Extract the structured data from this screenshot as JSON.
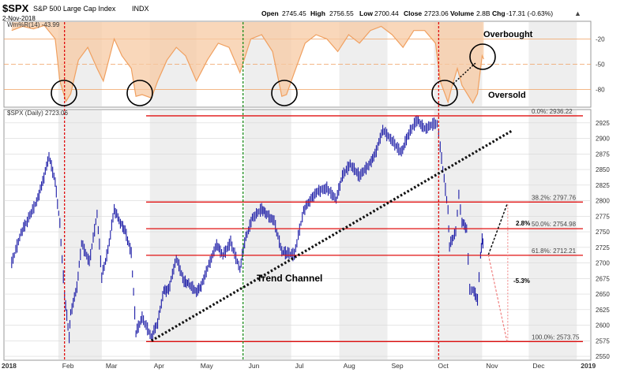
{
  "header": {
    "symbol": "$SPX",
    "name": "S&P 500 Large Cap Index",
    "exchange": "INDX",
    "date": "2-Nov-2018",
    "open_label": "Open",
    "open": "2745.45",
    "high_label": "High",
    "high": "2756.55",
    "low_label": "Low",
    "low": "2700.44",
    "close_label": "Close",
    "close": "2723.06",
    "volume_label": "Volume",
    "volume": "2.8B",
    "chg_label": "Chg",
    "chg": "-17.31 (-0.63%)"
  },
  "colors": {
    "price": "#1a1aa6",
    "willr": "#f0a060",
    "willr_fill": "#f7c9a3",
    "fib": "#e01010",
    "trend": "#111111",
    "grid": "#d8d8d8",
    "band": "#eeeeee",
    "vline_red": "#e01010",
    "vline_green": "#1a8a1a"
  },
  "chart_data": [
    {
      "type": "line",
      "title": "",
      "series": [
        {
          "name": "Wm%R(14)",
          "last_label": "-43.99",
          "x": [
            "2018-01-02",
            "2018-01-09",
            "2018-01-16",
            "2018-01-23",
            "2018-01-30",
            "2018-02-02",
            "2018-02-06",
            "2018-02-09",
            "2018-02-14",
            "2018-02-20",
            "2018-02-26",
            "2018-03-02",
            "2018-03-09",
            "2018-03-14",
            "2018-03-20",
            "2018-03-23",
            "2018-03-27",
            "2018-04-02",
            "2018-04-06",
            "2018-04-12",
            "2018-04-18",
            "2018-04-24",
            "2018-05-01",
            "2018-05-08",
            "2018-05-15",
            "2018-05-22",
            "2018-05-29",
            "2018-06-05",
            "2018-06-12",
            "2018-06-19",
            "2018-06-25",
            "2018-06-28",
            "2018-07-03",
            "2018-07-10",
            "2018-07-17",
            "2018-07-24",
            "2018-07-31",
            "2018-08-07",
            "2018-08-14",
            "2018-08-21",
            "2018-08-28",
            "2018-09-04",
            "2018-09-11",
            "2018-09-18",
            "2018-09-25",
            "2018-10-02",
            "2018-10-05",
            "2018-10-10",
            "2018-10-12",
            "2018-10-16",
            "2018-10-19",
            "2018-10-24",
            "2018-10-26",
            "2018-10-29",
            "2018-11-01",
            "2018-11-02"
          ],
          "values": [
            -10,
            -5,
            -8,
            -4,
            -20,
            -70,
            -94,
            -85,
            -45,
            -30,
            -55,
            -70,
            -20,
            -40,
            -55,
            -88,
            -86,
            -90,
            -70,
            -45,
            -30,
            -40,
            -70,
            -45,
            -25,
            -30,
            -60,
            -20,
            -15,
            -35,
            -88,
            -86,
            -60,
            -25,
            -15,
            -20,
            -35,
            -15,
            -25,
            -10,
            -5,
            -15,
            -30,
            -10,
            -10,
            -25,
            -70,
            -95,
            -80,
            -55,
            -75,
            -90,
            -96,
            -85,
            -40,
            -44
          ]
        }
      ],
      "ylim": [
        -100,
        0
      ],
      "yticks": [
        -20,
        -50,
        -80
      ],
      "hlines": [
        -20,
        -50,
        -80
      ],
      "annotations": [
        "Overbought",
        "Oversold"
      ]
    },
    {
      "type": "line",
      "title": "",
      "legend_label": "$SPX (Daily) 2723.06",
      "series": [
        {
          "name": "$SPX",
          "x": [
            "2018-01-02",
            "2018-01-08",
            "2018-01-12",
            "2018-01-18",
            "2018-01-22",
            "2018-01-26",
            "2018-01-30",
            "2018-02-02",
            "2018-02-05",
            "2018-02-08",
            "2018-02-09",
            "2018-02-13",
            "2018-02-16",
            "2018-02-21",
            "2018-02-26",
            "2018-03-01",
            "2018-03-05",
            "2018-03-09",
            "2018-03-13",
            "2018-03-16",
            "2018-03-20",
            "2018-03-23",
            "2018-03-27",
            "2018-04-02",
            "2018-04-06",
            "2018-04-10",
            "2018-04-13",
            "2018-04-18",
            "2018-04-23",
            "2018-04-26",
            "2018-05-01",
            "2018-05-04",
            "2018-05-09",
            "2018-05-14",
            "2018-05-18",
            "2018-05-23",
            "2018-05-29",
            "2018-06-01",
            "2018-06-06",
            "2018-06-12",
            "2018-06-15",
            "2018-06-20",
            "2018-06-25",
            "2018-06-28",
            "2018-07-03",
            "2018-07-09",
            "2018-07-13",
            "2018-07-18",
            "2018-07-24",
            "2018-07-30",
            "2018-08-03",
            "2018-08-08",
            "2018-08-14",
            "2018-08-20",
            "2018-08-24",
            "2018-08-29",
            "2018-09-04",
            "2018-09-10",
            "2018-09-14",
            "2018-09-20",
            "2018-09-25",
            "2018-10-01",
            "2018-10-03",
            "2018-10-05",
            "2018-10-10",
            "2018-10-11",
            "2018-10-15",
            "2018-10-17",
            "2018-10-19",
            "2018-10-22",
            "2018-10-24",
            "2018-10-26",
            "2018-10-29",
            "2018-10-31",
            "2018-11-01",
            "2018-11-02"
          ],
          "values": [
            2700,
            2748,
            2768,
            2798,
            2830,
            2872,
            2830,
            2762,
            2649,
            2581,
            2619,
            2662,
            2732,
            2701,
            2779,
            2678,
            2720,
            2786,
            2765,
            2752,
            2716,
            2588,
            2612,
            2581,
            2605,
            2656,
            2656,
            2708,
            2670,
            2666,
            2654,
            2663,
            2697,
            2730,
            2712,
            2733,
            2690,
            2734,
            2772,
            2787,
            2779,
            2767,
            2718,
            2716,
            2713,
            2784,
            2801,
            2815,
            2820,
            2802,
            2840,
            2858,
            2840,
            2857,
            2874,
            2914,
            2896,
            2877,
            2904,
            2930,
            2915,
            2924,
            2925,
            2885,
            2785,
            2728,
            2750,
            2809,
            2767,
            2755,
            2656,
            2658,
            2641,
            2711,
            2740,
            2723
          ]
        }
      ],
      "ylim": [
        2545,
        2945
      ],
      "yticks": [
        2550,
        2575,
        2600,
        2625,
        2650,
        2675,
        2700,
        2725,
        2750,
        2775,
        2800,
        2825,
        2850,
        2875,
        2900,
        2925
      ],
      "xticks": [
        "2018",
        "Feb",
        "Mar",
        "Apr",
        "May",
        "Jun",
        "Jul",
        "Aug",
        "Sep",
        "Oct",
        "Nov",
        "Dec",
        "2019"
      ],
      "fib_levels": [
        {
          "label": "0.0%: 2936.22",
          "value": 2936.22
        },
        {
          "label": "38.2%: 2797.76",
          "value": 2797.76
        },
        {
          "label": "50.0%: 2754.98",
          "value": 2754.98
        },
        {
          "label": "61.8%: 2712.21",
          "value": 2712.21
        },
        {
          "label": "100.0%: 2573.75",
          "value": 2573.75
        }
      ],
      "trend_line": {
        "x": [
          "2018-04-02",
          "2018-11-20"
        ],
        "y": [
          2575,
          2912
        ]
      },
      "trend_label": "Trend Channel",
      "scenario_up": {
        "label": "2.8%",
        "x": [
          "2018-11-05",
          "2018-11-17"
        ],
        "y": [
          2713,
          2794
        ]
      },
      "scenario_down": {
        "label": "-5.3%",
        "x": [
          "2018-11-05",
          "2018-11-17"
        ],
        "y": [
          2713,
          2574
        ]
      },
      "vlines": [
        {
          "date": "2018-02-05",
          "color": "red"
        },
        {
          "date": "2018-05-31",
          "color": "green"
        },
        {
          "date": "2018-10-04",
          "color": "red"
        }
      ]
    }
  ]
}
